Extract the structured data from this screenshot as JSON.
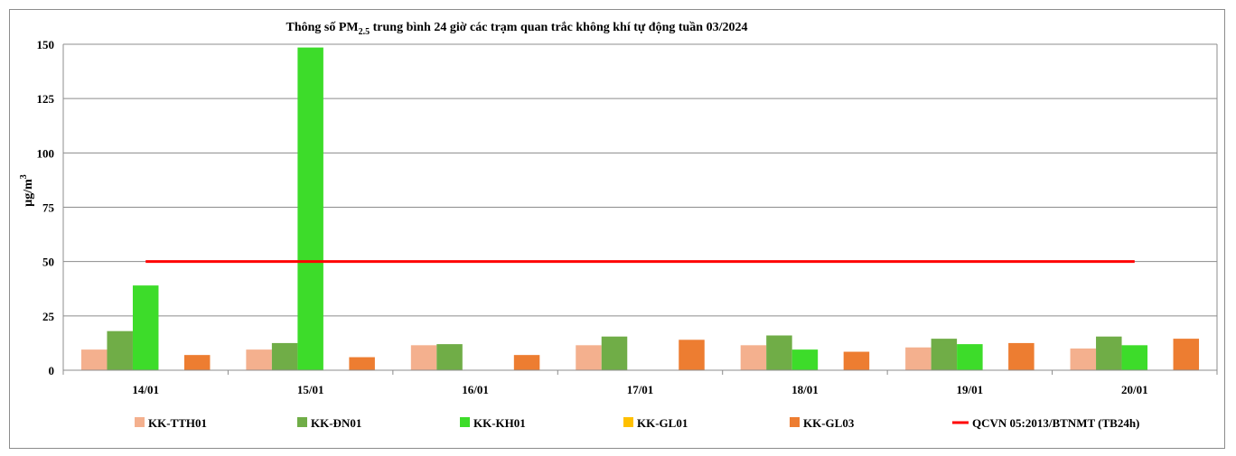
{
  "chart_data": {
    "type": "bar",
    "title_main": "Thông số PM",
    "title_sub": "2.5",
    "title_rest": " trung bình 24 giờ các trạm quan trắc không khí tự động tuần 03/2024",
    "ylabel_main": "µg/m",
    "ylabel_sup": "3",
    "xlabel": "",
    "ylim": [
      0,
      150
    ],
    "yticks": [
      "0",
      "25",
      "50",
      "75",
      "100",
      "125",
      "150"
    ],
    "categories": [
      "14/01",
      "15/01",
      "16/01",
      "17/01",
      "18/01",
      "19/01",
      "20/01"
    ],
    "series": [
      {
        "name": "KK-TTH01",
        "color": "#f4b08e",
        "values": [
          9.5,
          9.5,
          11.5,
          11.5,
          11.5,
          10.5,
          10
        ]
      },
      {
        "name": "KK-ĐN01",
        "color": "#70ad47",
        "values": [
          18,
          12.5,
          12,
          15.5,
          16,
          14.5,
          15.5
        ]
      },
      {
        "name": "KK-KH01",
        "color": "#3ddc2a",
        "values": [
          39,
          148.5,
          0,
          0,
          9.5,
          12,
          11.5
        ]
      },
      {
        "name": "KK-GL01",
        "color": "#ffc000",
        "values": [
          0,
          0,
          0,
          0,
          0,
          0,
          0
        ]
      },
      {
        "name": "KK-GL03",
        "color": "#ed7d31",
        "values": [
          7,
          6,
          7,
          14,
          8.5,
          12.5,
          14.5
        ]
      }
    ],
    "threshold": {
      "name": "QCVN 05:2013/BTNMT (TB24h)",
      "value": 50,
      "color": "#ff0000"
    },
    "grid": true,
    "legend_position": "bottom"
  }
}
